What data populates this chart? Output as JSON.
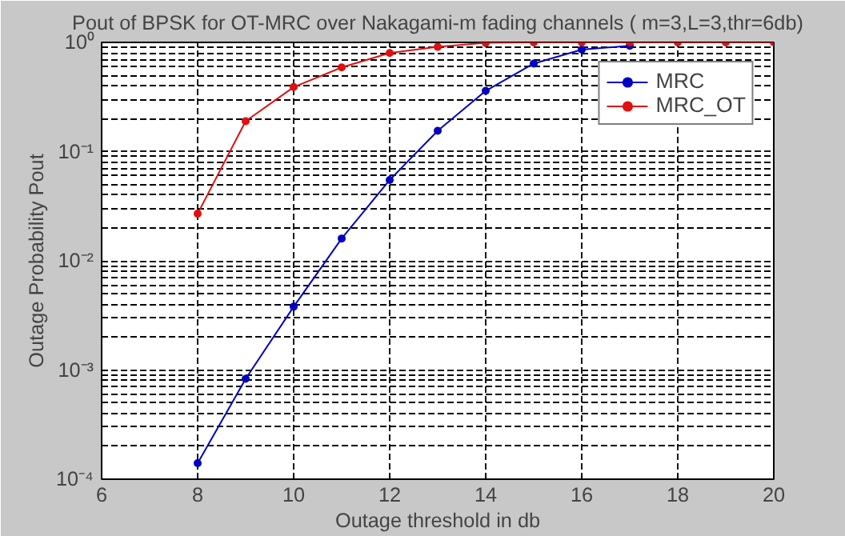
{
  "chart_data": {
    "type": "line",
    "title": "Pout of BPSK for OT-MRC over Nakagami-m fading channels ( m=3,L=3,thr=6db)",
    "xlabel": "Outage threshold in db",
    "ylabel": "Outage Probability Pout",
    "x": [
      8,
      9,
      10,
      11,
      12,
      13,
      14,
      15,
      16,
      17,
      18,
      19,
      20
    ],
    "series": [
      {
        "name": "MRC",
        "color": "#0000c0",
        "values": [
          0.00014,
          0.00083,
          0.0038,
          0.016,
          0.055,
          0.155,
          0.36,
          0.64,
          0.86,
          0.93,
          null,
          null,
          null
        ]
      },
      {
        "name": "MRC_OT",
        "color": "#e01010",
        "values": [
          0.027,
          0.19,
          0.39,
          0.59,
          0.8,
          0.91,
          0.99,
          1,
          1,
          1,
          1,
          1,
          1
        ]
      }
    ],
    "log": "y",
    "xlim": [
      6,
      20
    ],
    "ylim": [
      0.0001,
      1
    ],
    "xticks": [
      6,
      8,
      10,
      12,
      14,
      16,
      18,
      20
    ],
    "yticks": [
      {
        "value": 0.0001,
        "label": "10⁻⁴"
      },
      {
        "value": 0.001,
        "label": "10⁻³"
      },
      {
        "value": 0.01,
        "label": "10⁻²"
      },
      {
        "value": 0.1,
        "label": "10⁻¹"
      },
      {
        "value": 1,
        "label": "10⁰"
      }
    ],
    "grid": true,
    "legend": "top right",
    "marker": "circle",
    "line_style": "solid"
  }
}
